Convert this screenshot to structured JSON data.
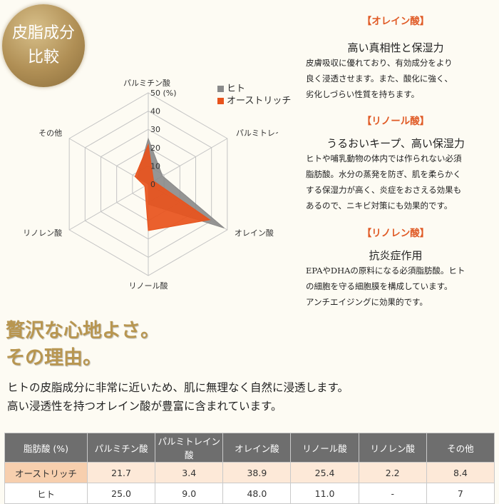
{
  "badge": {
    "line1": "皮脂成分",
    "line2": "比較"
  },
  "colors": {
    "hito": "#8a8a8a",
    "ostrich": "#e8531c",
    "accent": "#e05a25",
    "gold": "#b89650"
  },
  "legend": {
    "hito": "ヒト",
    "ostrich": "オーストリッチ"
  },
  "chart_data": {
    "type": "radar",
    "axes": [
      "パルミチン酸",
      "パルミトレイン酸",
      "オレイン酸",
      "リノール酸",
      "リノレン酸",
      "その他"
    ],
    "rticks": [
      "0",
      "10",
      "20",
      "30",
      "40",
      "50 (%)"
    ],
    "rlim": [
      0,
      50
    ],
    "series": [
      {
        "name": "ヒト",
        "values": [
          25.0,
          9.0,
          48.0,
          11.0,
          0,
          7
        ]
      },
      {
        "name": "オーストリッチ",
        "values": [
          21.7,
          3.4,
          38.9,
          25.4,
          2.2,
          8.4
        ]
      }
    ]
  },
  "sections": [
    {
      "head": "【オレイン酸】",
      "sub": "高い真相性と保湿力",
      "lines": [
        "皮膚吸収に優れており、有効成分をより",
        "良く浸透させます。また、酸化に強く、",
        "劣化しづらい性質を持ちます。"
      ]
    },
    {
      "head": "【リノール酸】",
      "sub": "うるおいキープ、高い保湿力",
      "lines": [
        "ヒトや哺乳動物の体内では作られない必須",
        "脂肪酸。水分の蒸発を防ぎ、肌を柔らかく",
        "する保湿力が高く、炎症をおさえる効果も",
        "あるので、ニキビ対策にも効果的です。"
      ]
    },
    {
      "head": "【リノレン酸】",
      "sub": "抗炎症作用",
      "lines": [
        "EPAやDHAの原料になる必須脂肪酸。ヒト",
        "の細胞を守る細胞膜を構成しています。",
        "アンチエイジングに効果的です。"
      ]
    }
  ],
  "headline": {
    "line1": "贅沢な心地よさ。",
    "line2": "その理由。"
  },
  "intro": {
    "line1": "ヒトの皮脂成分に非常に近いため、肌に無理なく自然に浸透します。",
    "line2": "高い浸透性を持つオレイン酸が豊富に含まれています。"
  },
  "table": {
    "header": [
      "脂肪酸 (%)",
      "パルミチン酸",
      "パルミトレイン酸",
      "オレイン酸",
      "リノール酸",
      "リノレン酸",
      "その他"
    ],
    "rows": [
      [
        "オーストリッチ",
        "21.7",
        "3.4",
        "38.9",
        "25.4",
        "2.2",
        "8.4"
      ],
      [
        "ヒト",
        "25.0",
        "9.0",
        "48.0",
        "11.0",
        "-",
        "7"
      ]
    ]
  }
}
